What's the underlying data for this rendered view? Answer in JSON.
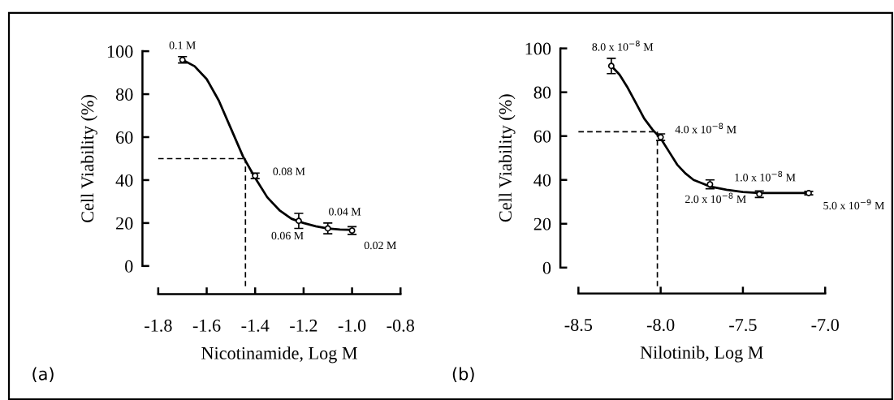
{
  "chart_data": [
    {
      "type": "line",
      "xlabel": "Nicotinamide, Log M",
      "ylabel": "Cell Viability (%)",
      "xlim": [
        -1.8,
        -0.8
      ],
      "ylim": [
        0,
        100
      ],
      "xticks": [
        -1.8,
        -1.6,
        -1.4,
        -1.2,
        {
          "value": -1.0,
          "label": "-1.0"
        },
        -0.8
      ],
      "yticks": [
        0,
        20,
        40,
        60,
        80,
        100
      ],
      "grid": false,
      "series": [
        {
          "type": "scatter",
          "marker": "circle",
          "color": "#000000",
          "x": [
            -1.7,
            -1.4,
            -1.22,
            -1.1,
            -1.0
          ],
          "values": [
            96,
            42,
            21,
            17.5,
            16.5
          ],
          "errors": [
            1.5,
            1.3,
            3.5,
            2.5,
            1.8
          ]
        },
        {
          "color": "#000000",
          "line_style": "solid",
          "x": [
            -1.7,
            -1.65,
            -1.6,
            -1.55,
            -1.5,
            -1.45,
            -1.4,
            -1.35,
            -1.3,
            -1.25,
            -1.2,
            -1.15,
            -1.1,
            -1.05,
            -1.0
          ],
          "values": [
            96,
            93,
            87,
            77,
            64,
            51,
            41,
            32,
            26,
            22,
            20,
            18.5,
            17.5,
            17,
            16.8
          ]
        }
      ],
      "ref_lines": [
        {
          "axis": "y",
          "value": 50,
          "line_style": "dashed",
          "color": "#000000"
        },
        {
          "axis": "x",
          "value": -1.44,
          "line_style": "dashed",
          "color": "#000000"
        }
      ],
      "annotations": [
        {
          "text": "0.1 M",
          "x": -1.7,
          "y": 96
        },
        {
          "text": "0.08 M",
          "x": -1.4,
          "y": 42
        },
        {
          "text": "0.06 M",
          "x": -1.22,
          "y": 21
        },
        {
          "text": "0.04 M",
          "x": -1.1,
          "y": 17.5
        },
        {
          "text": "0.02 M",
          "x": -1.0,
          "y": 16.5
        },
        "(a)"
      ]
    },
    {
      "type": "line",
      "xlabel": "Nilotinib, Log M",
      "ylabel": "Cell Viability (%)",
      "xlim": [
        -8.5,
        -7.0
      ],
      "ylim": [
        0,
        100
      ],
      "xticks": [
        -8.5,
        {
          "value": -8.0,
          "label": "-8.0"
        },
        -7.5,
        {
          "value": -7.0,
          "label": "-7.0"
        }
      ],
      "yticks": [
        0,
        20,
        40,
        60,
        80,
        100
      ],
      "grid": false,
      "series": [
        {
          "type": "scatter",
          "marker": "circle",
          "color": "#000000",
          "x": [
            -8.3,
            -8.0,
            -7.7,
            -7.4,
            -7.1
          ],
          "values": [
            92,
            59.5,
            38,
            33.5,
            34
          ],
          "errors": [
            3.5,
            1.5,
            2,
            1.5,
            0.8
          ]
        },
        {
          "color": "#000000",
          "line_style": "solid",
          "x": [
            -8.3,
            -8.25,
            -8.2,
            -8.15,
            -8.1,
            -8.05,
            -8.0,
            -7.95,
            -7.9,
            -7.85,
            -7.8,
            -7.75,
            -7.7,
            -7.6,
            -7.5,
            -7.4,
            -7.25,
            -7.1
          ],
          "values": [
            92,
            88,
            82,
            75,
            68,
            63,
            59,
            53,
            47,
            43,
            40,
            38.5,
            37,
            35.5,
            34.5,
            34,
            34,
            34
          ]
        }
      ],
      "ref_lines": [
        {
          "axis": "y",
          "value": 62,
          "line_style": "dashed",
          "color": "#000000"
        },
        {
          "axis": "x",
          "value": -8.02,
          "line_style": "dashed",
          "color": "#000000"
        }
      ],
      "annotations": [
        {
          "text": "8.0 x 10$^{−8}$ M",
          "x": -8.3,
          "y": 92
        },
        {
          "text": "4.0 x 10$^{−8}$ M",
          "x": -8.0,
          "y": 59.5
        },
        {
          "text": "2.0 x 10$^{−8}$ M",
          "x": -7.7,
          "y": 38
        },
        {
          "text": "1.0 x 10$^{−8}$ M",
          "x": -7.4,
          "y": 33.5
        },
        {
          "text": "5.0 x 10$^{−9}$ M",
          "x": -7.1,
          "y": 34
        },
        "(b)"
      ]
    }
  ]
}
